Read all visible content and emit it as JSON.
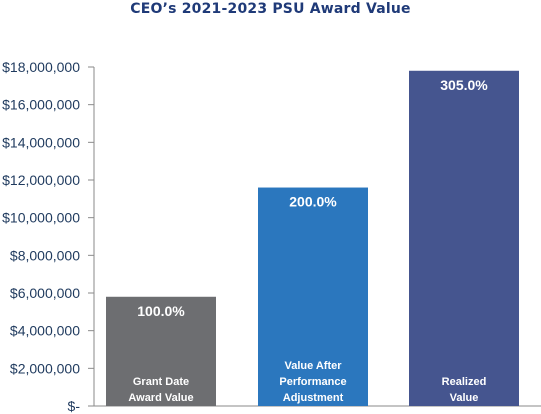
{
  "chart_data": {
    "type": "bar",
    "title": "CEO’s 2021-2023 PSU Award Value",
    "categories": [
      [
        "Grant Date",
        "Award Value"
      ],
      [
        "Value After",
        "Performance",
        "Adjustment"
      ],
      [
        "Realized",
        "Value"
      ]
    ],
    "values": [
      5800000,
      11600000,
      17800000
    ],
    "data_labels": [
      "100.0%",
      "200.0%",
      "305.0%"
    ],
    "colors": [
      "#6d6e71",
      "#2b77be",
      "#45558f"
    ],
    "ylim": [
      0,
      18000000
    ],
    "y_ticks": [
      0,
      2000000,
      4000000,
      6000000,
      8000000,
      10000000,
      12000000,
      14000000,
      16000000,
      18000000
    ],
    "y_tick_labels": [
      "$-",
      "$2,000,000",
      "$4,000,000",
      "$6,000,000",
      "$8,000,000",
      "$10,000,000",
      "$12,000,000",
      "$14,000,000",
      "$16,000,000",
      "$18,000,000"
    ],
    "xlabel": "",
    "ylabel": "",
    "grid": false,
    "legend": "none"
  }
}
